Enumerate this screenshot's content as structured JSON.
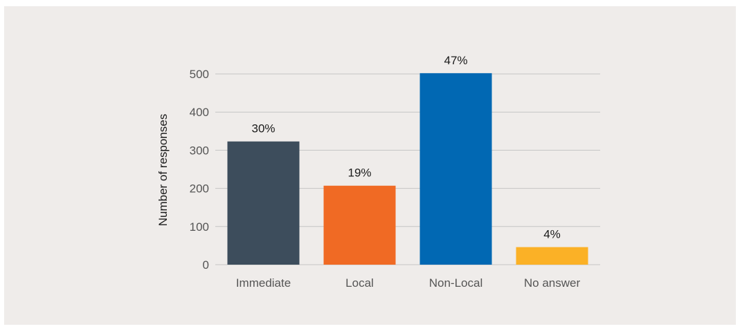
{
  "chart_data": {
    "type": "bar",
    "title": "",
    "xlabel": "",
    "ylabel": "Number of responses",
    "categories": [
      "Immediate",
      "Local",
      "Non-Local",
      "No answer"
    ],
    "values": [
      323,
      207,
      502,
      46
    ],
    "data_labels": [
      "30%",
      "19%",
      "47%",
      "4%"
    ],
    "colors": [
      "#3d4d5c",
      "#f06a24",
      "#0168b3",
      "#fbb126"
    ],
    "ylim": [
      0,
      500
    ],
    "yticks": [
      0,
      100,
      200,
      300,
      400,
      500
    ],
    "grid": true,
    "gridline_color": "#c4c4c4",
    "background": "#efecea",
    "legend": "none"
  }
}
